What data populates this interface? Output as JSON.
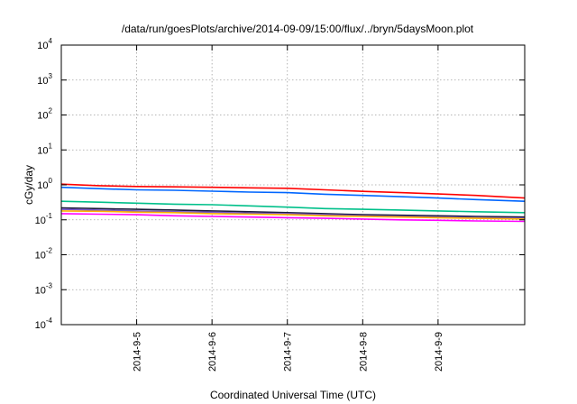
{
  "chart_data": {
    "type": "line",
    "title": "/data/run/goesPlots/archive/2014-09-09/15:00/flux/../bryn/5daysMoon.plot",
    "xlabel": "Coordinated Universal Time (UTC)",
    "ylabel": "cGy/day",
    "yscale": "log",
    "ylim": [
      0.0001,
      10000
    ],
    "xlim": [
      0,
      6.15
    ],
    "x_ticks": [
      {
        "label": "2014-9-5",
        "x": 1
      },
      {
        "label": "2014-9-6",
        "x": 2
      },
      {
        "label": "2014-9-7",
        "x": 3
      },
      {
        "label": "2014-9-8",
        "x": 4
      },
      {
        "label": "2014-9-9",
        "x": 5
      }
    ],
    "y_ticks": [
      {
        "base": "10",
        "exp": "-4",
        "value": 0.0001
      },
      {
        "base": "10",
        "exp": "-3",
        "value": 0.001
      },
      {
        "base": "10",
        "exp": "-2",
        "value": 0.01
      },
      {
        "base": "10",
        "exp": "-1",
        "value": 0.1
      },
      {
        "base": "10",
        "exp": "0",
        "value": 1
      },
      {
        "base": "10",
        "exp": "1",
        "value": 10
      },
      {
        "base": "10",
        "exp": "2",
        "value": 100
      },
      {
        "base": "10",
        "exp": "3",
        "value": 1000
      },
      {
        "base": "10",
        "exp": "4",
        "value": 10000
      }
    ],
    "grid": true,
    "series": [
      {
        "color": "#ff0000",
        "x": [
          0,
          0.5,
          1,
          1.5,
          2,
          2.5,
          3,
          3.5,
          4,
          4.5,
          5,
          5.5,
          6.15
        ],
        "values": [
          1.05,
          0.95,
          0.9,
          0.88,
          0.85,
          0.82,
          0.8,
          0.72,
          0.65,
          0.6,
          0.55,
          0.5,
          0.42
        ]
      },
      {
        "color": "#0066ff",
        "x": [
          0,
          0.5,
          1,
          1.5,
          2,
          2.5,
          3,
          3.5,
          4,
          4.5,
          5,
          5.5,
          6.15
        ],
        "values": [
          0.85,
          0.78,
          0.72,
          0.7,
          0.66,
          0.62,
          0.6,
          0.54,
          0.5,
          0.46,
          0.42,
          0.38,
          0.34
        ]
      },
      {
        "color": "#00c08a",
        "x": [
          0,
          0.5,
          1,
          1.5,
          2,
          2.5,
          3,
          3.5,
          4,
          4.5,
          5,
          5.5,
          6.15
        ],
        "values": [
          0.34,
          0.32,
          0.3,
          0.28,
          0.27,
          0.25,
          0.23,
          0.21,
          0.2,
          0.19,
          0.18,
          0.17,
          0.16
        ]
      },
      {
        "color": "#1a1a3a",
        "x": [
          0,
          0.5,
          1,
          1.5,
          2,
          2.5,
          3,
          3.5,
          4,
          4.5,
          5,
          5.5,
          6.15
        ],
        "values": [
          0.22,
          0.21,
          0.2,
          0.19,
          0.18,
          0.17,
          0.16,
          0.15,
          0.14,
          0.135,
          0.13,
          0.125,
          0.12
        ]
      },
      {
        "color": "#7a55c8",
        "x": [
          0,
          0.5,
          1,
          1.5,
          2,
          2.5,
          3,
          3.5,
          4,
          4.5,
          5,
          5.5,
          6.15
        ],
        "values": [
          0.2,
          0.19,
          0.18,
          0.17,
          0.165,
          0.155,
          0.15,
          0.14,
          0.13,
          0.125,
          0.12,
          0.115,
          0.11
        ]
      },
      {
        "color": "#ffb000",
        "x": [
          0,
          0.5,
          1,
          1.5,
          2,
          2.5,
          3,
          3.5,
          4,
          4.5,
          5,
          5.5,
          6.15
        ],
        "values": [
          0.18,
          0.175,
          0.165,
          0.16,
          0.15,
          0.145,
          0.14,
          0.13,
          0.125,
          0.12,
          0.115,
          0.11,
          0.105
        ]
      },
      {
        "color": "#ff00ff",
        "x": [
          0,
          0.5,
          1,
          1.5,
          2,
          2.5,
          3,
          3.5,
          4,
          4.5,
          5,
          5.5,
          6.15
        ],
        "values": [
          0.15,
          0.145,
          0.14,
          0.13,
          0.125,
          0.12,
          0.115,
          0.11,
          0.105,
          0.1,
          0.097,
          0.093,
          0.09
        ]
      }
    ]
  }
}
